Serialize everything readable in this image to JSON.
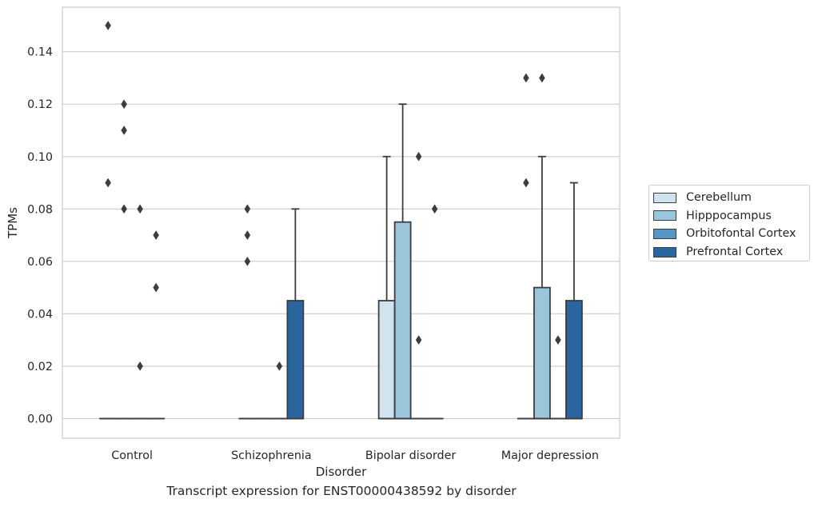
{
  "chart_data": {
    "type": "boxplot",
    "subtitle": "Transcript expression for ENST00000438592 by disorder",
    "xlabel": "Disorder",
    "ylabel": "TPMs",
    "ylim": [
      -0.0075,
      0.157
    ],
    "yticks": [
      "0.00",
      "0.02",
      "0.04",
      "0.06",
      "0.08",
      "0.10",
      "0.12",
      "0.14"
    ],
    "grid": "horizontal",
    "legend_position": "center-right",
    "categories": [
      "Control",
      "Schizophrenia",
      "Bipolar disorder",
      "Major depression"
    ],
    "series": [
      {
        "name": "Cerebellum",
        "color": "#d2e3f0",
        "boxes": [
          {
            "min": 0,
            "q1": 0,
            "median": 0,
            "q3": 0,
            "max": 0,
            "outliers": [
              0.09,
              0.15
            ]
          },
          {
            "min": 0,
            "q1": 0,
            "median": 0,
            "q3": 0,
            "max": 0,
            "outliers": [
              0.06,
              0.07,
              0.08
            ]
          },
          {
            "min": 0,
            "q1": 0,
            "median": 0,
            "q3": 0.045,
            "max": 0.1,
            "outliers": []
          },
          {
            "min": 0,
            "q1": 0,
            "median": 0,
            "q3": 0,
            "max": 0,
            "outliers": [
              0.09,
              0.13
            ]
          }
        ]
      },
      {
        "name": "Hipppocampus",
        "color": "#9ac5db",
        "boxes": [
          {
            "min": 0,
            "q1": 0,
            "median": 0,
            "q3": 0,
            "max": 0,
            "outliers": [
              0.08,
              0.11,
              0.12
            ]
          },
          {
            "min": 0,
            "q1": 0,
            "median": 0,
            "q3": 0,
            "max": 0,
            "outliers": []
          },
          {
            "min": 0,
            "q1": 0,
            "median": 0,
            "q3": 0.075,
            "max": 0.12,
            "outliers": []
          },
          {
            "min": 0,
            "q1": 0,
            "median": 0,
            "q3": 0.05,
            "max": 0.1,
            "outliers": [
              0.13
            ]
          }
        ]
      },
      {
        "name": "Orbitofontal Cortex",
        "color": "#5497c4",
        "boxes": [
          {
            "min": 0,
            "q1": 0,
            "median": 0,
            "q3": 0,
            "max": 0,
            "outliers": [
              0.02,
              0.08
            ]
          },
          {
            "min": 0,
            "q1": 0,
            "median": 0,
            "q3": 0,
            "max": 0,
            "outliers": [
              0.02
            ]
          },
          {
            "min": 0,
            "q1": 0,
            "median": 0,
            "q3": 0,
            "max": 0,
            "outliers": [
              0.03,
              0.1
            ]
          },
          {
            "min": 0,
            "q1": 0,
            "median": 0,
            "q3": 0,
            "max": 0,
            "outliers": [
              0.03
            ]
          }
        ]
      },
      {
        "name": "Prefrontal Cortex",
        "color": "#2a65a0",
        "boxes": [
          {
            "min": 0,
            "q1": 0,
            "median": 0,
            "q3": 0,
            "max": 0,
            "outliers": [
              0.05,
              0.07
            ]
          },
          {
            "min": 0,
            "q1": 0,
            "median": 0,
            "q3": 0.045,
            "max": 0.08,
            "outliers": []
          },
          {
            "min": 0,
            "q1": 0,
            "median": 0,
            "q3": 0,
            "max": 0,
            "outliers": [
              0.08
            ]
          },
          {
            "min": 0,
            "q1": 0,
            "median": 0,
            "q3": 0.045,
            "max": 0.09,
            "outliers": []
          }
        ]
      }
    ]
  }
}
